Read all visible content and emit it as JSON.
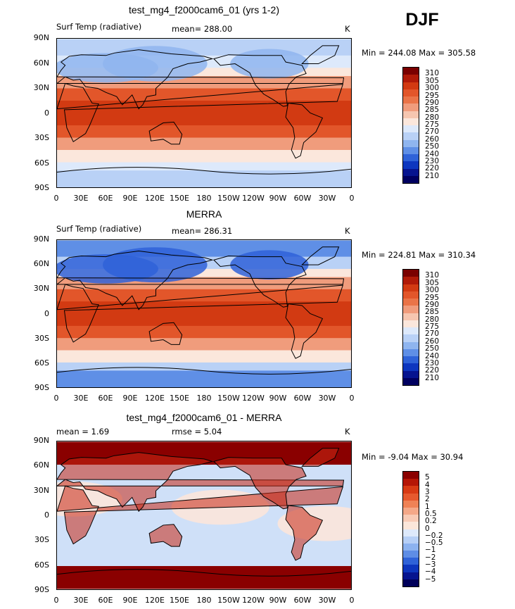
{
  "season": "DJF",
  "panels": [
    {
      "title": "test_mg4_f2000cam6_01 (yrs 1-2)",
      "left_label": "Surf Temp (radiative)",
      "mean_label": "mean= 288.00",
      "units": "K",
      "minmax": "Min = 244.08  Max = 305.58",
      "kind": "abs"
    },
    {
      "title": "MERRA",
      "left_label": "Surf Temp (radiative)",
      "mean_label": "mean= 286.31",
      "units": "K",
      "minmax": "Min = 224.81  Max = 310.34",
      "kind": "abs"
    },
    {
      "title": "test_mg4_f2000cam6_01 - MERRA",
      "left_label": "mean =    1.69",
      "mean_label": "rmse =    5.04",
      "units": "K",
      "minmax": "Min =  -9.04  Max =   30.94",
      "kind": "diff"
    }
  ],
  "y_ticks": [
    "90N",
    "60N",
    "30N",
    "0",
    "30S",
    "60S",
    "90S"
  ],
  "x_ticks": [
    "0",
    "30E",
    "60E",
    "90E",
    "120E",
    "150E",
    "180",
    "150W",
    "120W",
    "90W",
    "60W",
    "30W",
    "0"
  ],
  "abs_levels": [
    "310",
    "305",
    "300",
    "295",
    "290",
    "285",
    "280",
    "275",
    "270",
    "260",
    "250",
    "240",
    "230",
    "220",
    "210"
  ],
  "abs_colors": [
    "#7a0000",
    "#b01a08",
    "#d23a12",
    "#e2562a",
    "#ea7448",
    "#f09c7c",
    "#f6c6b0",
    "#fbe7dc",
    "#dde9fb",
    "#b9d1f6",
    "#8fb5ef",
    "#5f8fe6",
    "#2f62d8",
    "#0d36bf",
    "#06148f",
    "#000060"
  ],
  "diff_levels": [
    "5",
    "4",
    "3",
    "2",
    "1",
    "0.5",
    "0.2",
    "0",
    "−0.2",
    "−0.5",
    "−1",
    "−2",
    "−3",
    "−4",
    "−5"
  ],
  "diff_colors": [
    "#8a0000",
    "#b51606",
    "#d83a14",
    "#e6592e",
    "#ef8256",
    "#f4a888",
    "#f8cbb6",
    "#fbe6da",
    "#dde9fb",
    "#b6cff6",
    "#8cb2ef",
    "#5e8de5",
    "#2f62d8",
    "#0d35bd",
    "#06148f",
    "#00005a"
  ],
  "chart_data": [
    {
      "type": "heatmap",
      "title": "test_mg4_f2000cam6_01 (yrs 1-2)",
      "variable": "Surf Temp (radiative)",
      "units": "K",
      "mean": 288.0,
      "min": 244.08,
      "max": 305.58,
      "contour_levels": [
        210,
        220,
        230,
        240,
        250,
        260,
        270,
        275,
        280,
        285,
        290,
        295,
        300,
        305,
        310
      ],
      "xlim": [
        "0",
        "0"
      ],
      "ylim": [
        "90S",
        "90N"
      ]
    },
    {
      "type": "heatmap",
      "title": "MERRA",
      "variable": "Surf Temp (radiative)",
      "units": "K",
      "mean": 286.31,
      "min": 224.81,
      "max": 310.34,
      "contour_levels": [
        210,
        220,
        230,
        240,
        250,
        260,
        270,
        275,
        280,
        285,
        290,
        295,
        300,
        305,
        310
      ]
    },
    {
      "type": "heatmap",
      "title": "test_mg4_f2000cam6_01 - MERRA",
      "units": "K",
      "mean": 1.69,
      "rmse": 5.04,
      "min": -9.04,
      "max": 30.94,
      "contour_levels": [
        -5,
        -4,
        -3,
        -2,
        -1,
        -0.5,
        -0.2,
        0,
        0.2,
        0.5,
        1,
        2,
        3,
        4,
        5
      ]
    }
  ]
}
